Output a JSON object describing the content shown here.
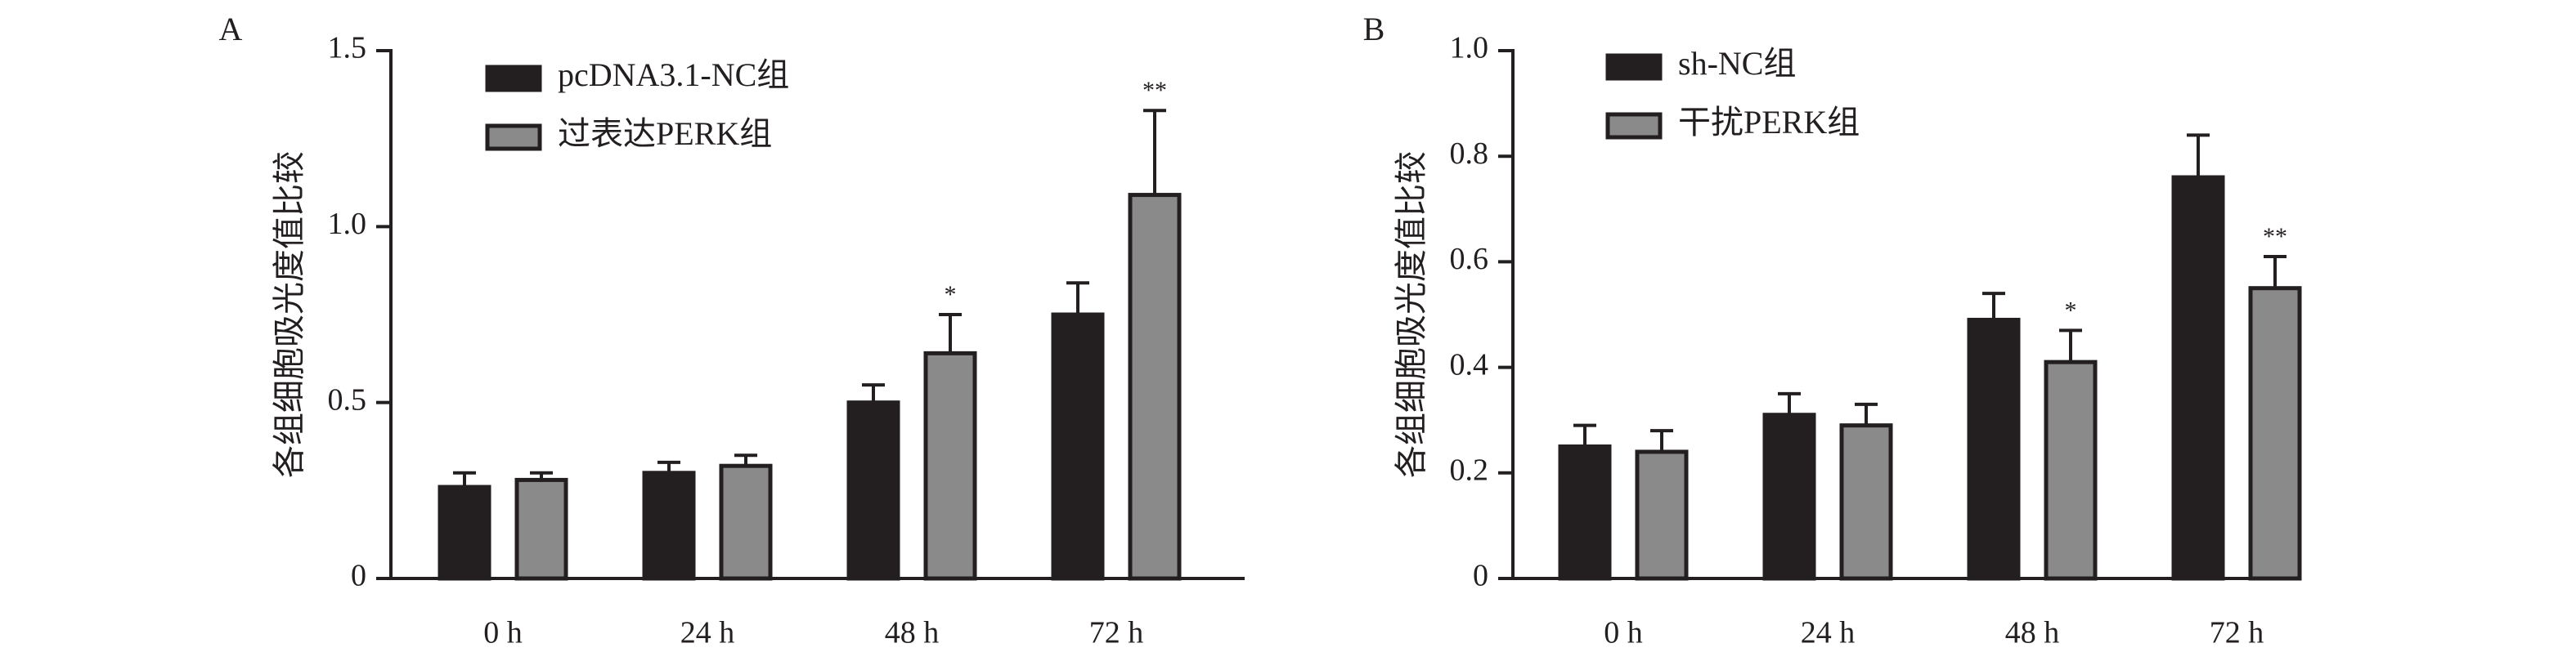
{
  "chart_data": [
    {
      "type": "bar",
      "panel_label": "A",
      "categories": [
        "0 h",
        "24 h",
        "48 h",
        "72 h"
      ],
      "ylabel": "各组细胞吸光度值比较",
      "xlabel": "",
      "ylim": [
        0,
        1.5
      ],
      "yticks": [
        "0",
        "0.5",
        "1.0",
        "1.5"
      ],
      "ytick_values": [
        0,
        0.5,
        1.0,
        1.5
      ],
      "legend_position": "top-left",
      "series": [
        {
          "name": "pcDNA3.1-NC组",
          "color": "#231f20",
          "values": [
            0.26,
            0.3,
            0.5,
            0.75
          ],
          "errors": [
            0.04,
            0.03,
            0.05,
            0.09
          ],
          "marks": [
            "",
            "",
            "",
            ""
          ]
        },
        {
          "name": "过表达PERK组",
          "color": "#8a8a8a",
          "values": [
            0.28,
            0.32,
            0.64,
            1.09
          ],
          "errors": [
            0.02,
            0.03,
            0.11,
            0.24
          ],
          "marks": [
            "",
            "",
            "*",
            "**"
          ]
        }
      ]
    },
    {
      "type": "bar",
      "panel_label": "B",
      "categories": [
        "0 h",
        "24 h",
        "48 h",
        "72 h"
      ],
      "ylabel": "各组细胞吸光度值比较",
      "xlabel": "",
      "ylim": [
        0,
        1.0
      ],
      "yticks": [
        "0",
        "0.2",
        "0.4",
        "0.6",
        "0.8",
        "1.0"
      ],
      "ytick_values": [
        0,
        0.2,
        0.4,
        0.6,
        0.8,
        1.0
      ],
      "legend_position": "top-left",
      "series": [
        {
          "name": "sh-NC组",
          "color": "#231f20",
          "values": [
            0.25,
            0.31,
            0.49,
            0.76
          ],
          "errors": [
            0.04,
            0.04,
            0.05,
            0.08
          ],
          "marks": [
            "",
            "",
            "",
            ""
          ]
        },
        {
          "name": "干扰PERK组",
          "color": "#8a8a8a",
          "values": [
            0.24,
            0.29,
            0.41,
            0.55
          ],
          "errors": [
            0.04,
            0.04,
            0.06,
            0.06
          ],
          "marks": [
            "",
            "",
            "*",
            "**"
          ]
        }
      ]
    }
  ]
}
